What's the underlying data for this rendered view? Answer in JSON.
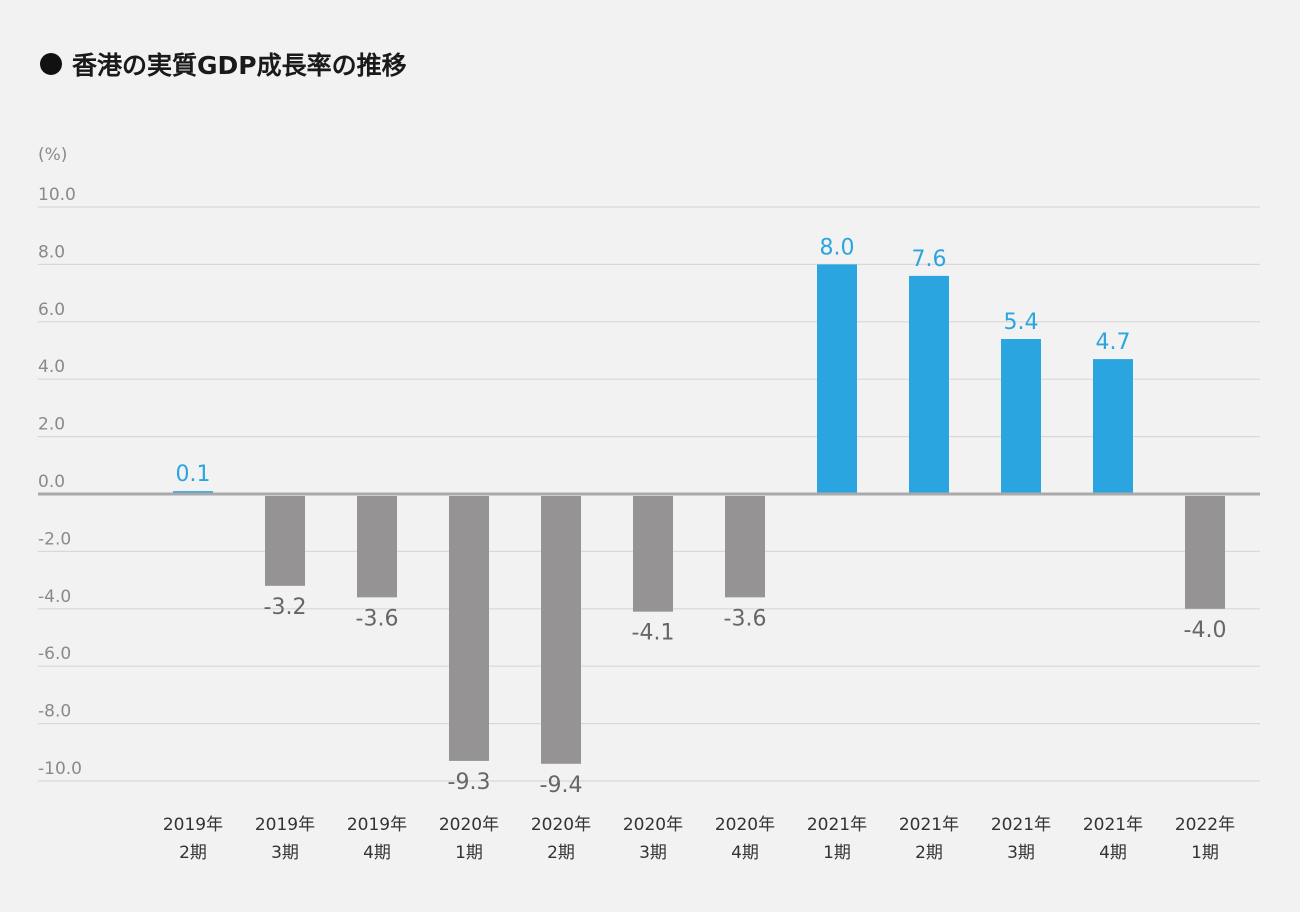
{
  "title": "香港の実質GDP成長率の推移",
  "chart_data": {
    "type": "bar",
    "unit": "(%)",
    "ylim": [
      -10,
      10
    ],
    "yticks": [
      "10.0",
      "8.0",
      "6.0",
      "4.0",
      "2.0",
      "0.0",
      "-2.0",
      "-4.0",
      "-6.0",
      "-8.0",
      "-10.0"
    ],
    "categories": [
      [
        "2019年",
        "2期"
      ],
      [
        "2019年",
        "3期"
      ],
      [
        "2019年",
        "4期"
      ],
      [
        "2020年",
        "1期"
      ],
      [
        "2020年",
        "2期"
      ],
      [
        "2020年",
        "3期"
      ],
      [
        "2020年",
        "4期"
      ],
      [
        "2021年",
        "1期"
      ],
      [
        "2021年",
        "2期"
      ],
      [
        "2021年",
        "3期"
      ],
      [
        "2021年",
        "4期"
      ],
      [
        "2022年",
        "1期"
      ]
    ],
    "values": [
      0.1,
      -3.2,
      -3.6,
      -9.3,
      -9.4,
      -4.1,
      -3.6,
      8.0,
      7.6,
      5.4,
      4.7,
      -4.0
    ],
    "value_labels": [
      "0.1",
      "-3.2",
      "-3.6",
      "-9.3",
      "-9.4",
      "-4.1",
      "-3.6",
      "8.0",
      "7.6",
      "5.4",
      "4.7",
      "-4.0"
    ],
    "grid": true,
    "colors": {
      "positive": "#2aa5df",
      "negative": "#959393",
      "positive_label": "#2aa5df",
      "negative_label": "#666666",
      "zero_line": "#aaaaaa",
      "grid": "#d8d8d8"
    }
  }
}
